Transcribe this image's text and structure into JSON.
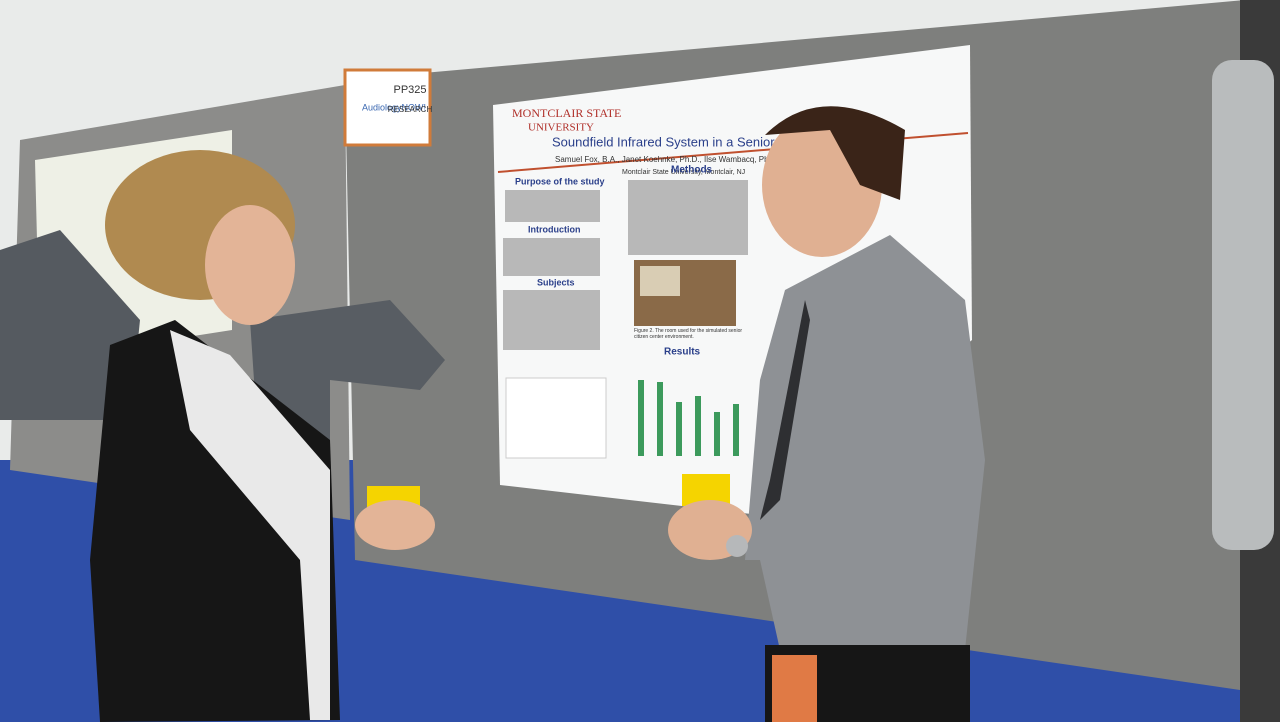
{
  "sign": {
    "brand": "AudiologyNOW!",
    "code": "PP325",
    "label": "RESEARCH"
  },
  "poster": {
    "university": "MONTCLAIR STATE",
    "university_line2": "UNIVERSITY",
    "title": "Soundfield Infrared System in a Senior Citizen C",
    "authors": "Samuel Fox, B.A., Janet Koehnke, Ph.D., Ilse Wambacq, Ph.D., Joan B",
    "affiliation": "Montclair State University, Montclair, NJ",
    "headings": [
      "Purpose of the study",
      "Introduction",
      "Subjects",
      "Methods",
      "Results"
    ],
    "figure_caption": "Figure 2. The room used for the simulated senior citizen center environment."
  }
}
